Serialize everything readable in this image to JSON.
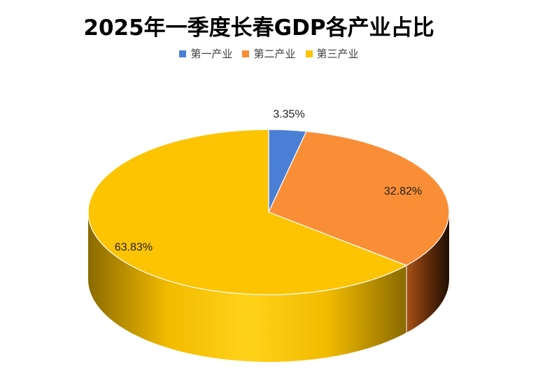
{
  "chart_data": {
    "type": "pie",
    "title": "2025年一季度长春GDP各产业占比",
    "categories": [
      "第一产业",
      "第二产业",
      "第三产业"
    ],
    "values": [
      3.35,
      32.82,
      63.83
    ],
    "labels": [
      "3.35%",
      "32.82%",
      "63.83%"
    ],
    "colors": [
      "#4a7fd6",
      "#f98e36",
      "#fcc402"
    ],
    "legend_position": "top",
    "style": "3d"
  }
}
